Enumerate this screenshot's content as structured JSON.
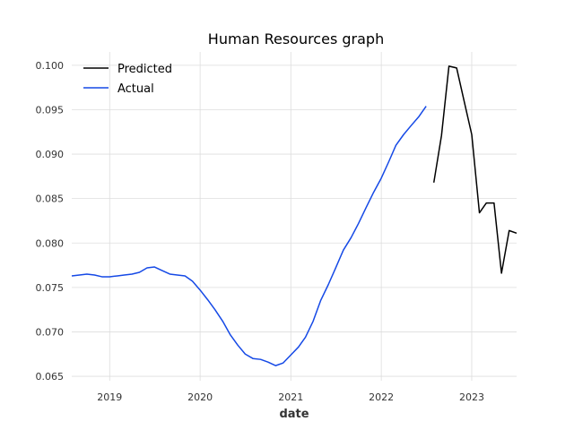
{
  "chart_data": {
    "type": "line",
    "title": "Human Resources graph",
    "xlabel": "date",
    "ylabel": "",
    "xlim": [
      "2018-08-01",
      "2023-07-01"
    ],
    "ylim": [
      0.0645,
      0.1015
    ],
    "x_ticks": [
      {
        "date": "2019-01-01",
        "label": "2019"
      },
      {
        "date": "2020-01-01",
        "label": "2020"
      },
      {
        "date": "2021-01-01",
        "label": "2021"
      },
      {
        "date": "2022-01-01",
        "label": "2022"
      },
      {
        "date": "2023-01-01",
        "label": "2023"
      }
    ],
    "y_ticks": [
      {
        "value": 0.065,
        "label": "0.065"
      },
      {
        "value": 0.07,
        "label": "0.070"
      },
      {
        "value": 0.075,
        "label": "0.075"
      },
      {
        "value": 0.08,
        "label": "0.080"
      },
      {
        "value": 0.085,
        "label": "0.085"
      },
      {
        "value": 0.09,
        "label": "0.090"
      },
      {
        "value": 0.095,
        "label": "0.095"
      },
      {
        "value": 0.1,
        "label": "0.100"
      }
    ],
    "grid": true,
    "legend": "top-left",
    "series": [
      {
        "name": "Predicted",
        "color": "#000000",
        "x": [
          "2022-08-01",
          "2022-09-01",
          "2022-10-01",
          "2022-11-01",
          "2022-12-01",
          "2023-01-01",
          "2023-02-01",
          "2023-03-01",
          "2023-04-01",
          "2023-05-01",
          "2023-06-01",
          "2023-07-01"
        ],
        "y": [
          0.0868,
          0.0921,
          0.0999,
          0.0997,
          0.096,
          0.0922,
          0.0834,
          0.0845,
          0.0845,
          0.0766,
          0.0814,
          0.0811
        ]
      },
      {
        "name": "Actual",
        "color": "#1549e6",
        "x": [
          "2018-08-01",
          "2018-09-01",
          "2018-10-01",
          "2018-11-01",
          "2018-12-01",
          "2019-01-01",
          "2019-02-01",
          "2019-03-01",
          "2019-04-01",
          "2019-05-01",
          "2019-06-01",
          "2019-07-01",
          "2019-08-01",
          "2019-09-01",
          "2019-10-01",
          "2019-11-01",
          "2019-12-01",
          "2020-01-01",
          "2020-02-01",
          "2020-03-01",
          "2020-04-01",
          "2020-05-01",
          "2020-06-01",
          "2020-07-01",
          "2020-08-01",
          "2020-09-01",
          "2020-10-01",
          "2020-11-01",
          "2020-12-01",
          "2021-01-01",
          "2021-02-01",
          "2021-03-01",
          "2021-04-01",
          "2021-05-01",
          "2021-06-01",
          "2021-07-01",
          "2021-08-01",
          "2021-09-01",
          "2021-10-01",
          "2021-11-01",
          "2021-12-01",
          "2022-01-01",
          "2022-02-01",
          "2022-03-01",
          "2022-04-01",
          "2022-05-01",
          "2022-06-01",
          "2022-07-01"
        ],
        "y": [
          0.0763,
          0.0764,
          0.0765,
          0.0764,
          0.0762,
          0.0762,
          0.0763,
          0.0764,
          0.0765,
          0.0767,
          0.0772,
          0.0773,
          0.0769,
          0.0765,
          0.0764,
          0.0763,
          0.0757,
          0.0747,
          0.0736,
          0.0725,
          0.0712,
          0.0697,
          0.0685,
          0.0675,
          0.067,
          0.0669,
          0.0666,
          0.0662,
          0.0665,
          0.0674,
          0.0683,
          0.0694,
          0.0712,
          0.0735,
          0.0753,
          0.0772,
          0.0792,
          0.0806,
          0.0822,
          0.084,
          0.0857,
          0.0873,
          0.0892,
          0.091,
          0.0922,
          0.0932,
          0.0942,
          0.0954
        ]
      }
    ]
  }
}
